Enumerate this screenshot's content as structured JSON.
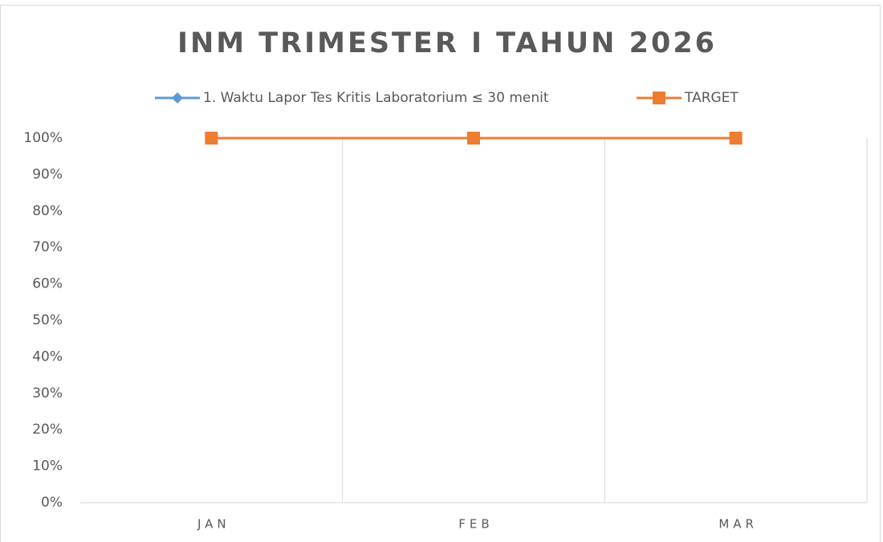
{
  "chart_data": {
    "type": "line",
    "title": "INM TRIMESTER I TAHUN 2026",
    "categories": [
      "JAN",
      "FEB",
      "MAR"
    ],
    "series": [
      {
        "name": "1. Waktu Lapor Tes Kritis Laboratorium ≤ 30 menit",
        "color": "#5b9bd5",
        "marker": "diamond",
        "values": [
          100,
          100,
          100
        ]
      },
      {
        "name": "TARGET",
        "color": "#ed7d31",
        "marker": "square",
        "values": [
          100,
          100,
          100
        ]
      }
    ],
    "ylim": [
      0,
      100
    ],
    "yticks": [
      {
        "value": 0,
        "label": "0%"
      },
      {
        "value": 10,
        "label": "10%"
      },
      {
        "value": 20,
        "label": "20%"
      },
      {
        "value": 30,
        "label": "30%"
      },
      {
        "value": 40,
        "label": "40%"
      },
      {
        "value": 50,
        "label": "50%"
      },
      {
        "value": 60,
        "label": "60%"
      },
      {
        "value": 70,
        "label": "70%"
      },
      {
        "value": 80,
        "label": "80%"
      },
      {
        "value": 90,
        "label": "90%"
      },
      {
        "value": 100,
        "label": "100%"
      }
    ],
    "legend": "top",
    "grid": "vertical"
  }
}
